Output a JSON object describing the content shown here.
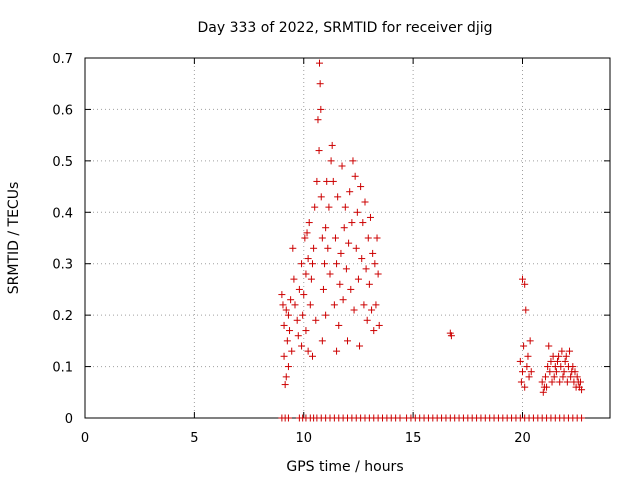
{
  "chart_data": {
    "type": "scatter",
    "title": "Day 333 of 2022, SRMTID for receiver djig",
    "xlabel": "GPS time / hours",
    "ylabel": "SRMTID / TECUs",
    "xlim": [
      0,
      24
    ],
    "ylim": [
      0,
      0.7
    ],
    "xticks": [
      0,
      5,
      10,
      15,
      20
    ],
    "yticks": [
      0,
      0.1,
      0.2,
      0.3,
      0.4,
      0.5,
      0.6,
      0.7
    ],
    "grid": true,
    "marker": "+",
    "marker_color": "#cc0000",
    "series": [
      {
        "name": "SRMTID",
        "points": [
          [
            9.0,
            0.24
          ],
          [
            9.05,
            0.22
          ],
          [
            9.1,
            0.18
          ],
          [
            9.1,
            0.12
          ],
          [
            9.15,
            0.065
          ],
          [
            9.2,
            0.08
          ],
          [
            9.2,
            0.21
          ],
          [
            9.25,
            0.15
          ],
          [
            9.3,
            0.2
          ],
          [
            9.3,
            0.1
          ],
          [
            9.35,
            0.17
          ],
          [
            9.4,
            0.23
          ],
          [
            9.45,
            0.13
          ],
          [
            9.5,
            0.33
          ],
          [
            9.55,
            0.27
          ],
          [
            9.6,
            0.22
          ],
          [
            9.7,
            0.19
          ],
          [
            9.75,
            0.16
          ],
          [
            9.8,
            0.25
          ],
          [
            9.9,
            0.3
          ],
          [
            9.9,
            0.14
          ],
          [
            9.95,
            0.2
          ],
          [
            10.0,
            0.24
          ],
          [
            10.05,
            0.35
          ],
          [
            10.1,
            0.28
          ],
          [
            10.1,
            0.17
          ],
          [
            10.15,
            0.36
          ],
          [
            10.2,
            0.31
          ],
          [
            10.2,
            0.13
          ],
          [
            10.25,
            0.38
          ],
          [
            10.3,
            0.22
          ],
          [
            10.35,
            0.27
          ],
          [
            10.4,
            0.3
          ],
          [
            10.4,
            0.12
          ],
          [
            10.45,
            0.33
          ],
          [
            10.5,
            0.41
          ],
          [
            10.55,
            0.19
          ],
          [
            10.6,
            0.46
          ],
          [
            10.65,
            0.58
          ],
          [
            10.7,
            0.52
          ],
          [
            10.72,
            0.69
          ],
          [
            10.75,
            0.65
          ],
          [
            10.78,
            0.6
          ],
          [
            10.8,
            0.43
          ],
          [
            10.85,
            0.35
          ],
          [
            10.85,
            0.15
          ],
          [
            10.9,
            0.25
          ],
          [
            10.95,
            0.3
          ],
          [
            11.0,
            0.37
          ],
          [
            11.0,
            0.2
          ],
          [
            11.05,
            0.46
          ],
          [
            11.1,
            0.33
          ],
          [
            11.15,
            0.41
          ],
          [
            11.2,
            0.28
          ],
          [
            11.25,
            0.5
          ],
          [
            11.3,
            0.53
          ],
          [
            11.35,
            0.46
          ],
          [
            11.4,
            0.22
          ],
          [
            11.45,
            0.35
          ],
          [
            11.5,
            0.3
          ],
          [
            11.5,
            0.13
          ],
          [
            11.55,
            0.43
          ],
          [
            11.6,
            0.18
          ],
          [
            11.65,
            0.26
          ],
          [
            11.7,
            0.32
          ],
          [
            11.75,
            0.49
          ],
          [
            11.8,
            0.23
          ],
          [
            11.85,
            0.37
          ],
          [
            11.9,
            0.41
          ],
          [
            11.95,
            0.29
          ],
          [
            12.0,
            0.15
          ],
          [
            12.05,
            0.34
          ],
          [
            12.1,
            0.44
          ],
          [
            12.15,
            0.25
          ],
          [
            12.2,
            0.38
          ],
          [
            12.25,
            0.5
          ],
          [
            12.3,
            0.21
          ],
          [
            12.35,
            0.47
          ],
          [
            12.4,
            0.33
          ],
          [
            12.45,
            0.4
          ],
          [
            12.5,
            0.27
          ],
          [
            12.55,
            0.14
          ],
          [
            12.6,
            0.45
          ],
          [
            12.65,
            0.31
          ],
          [
            12.7,
            0.38
          ],
          [
            12.75,
            0.22
          ],
          [
            12.8,
            0.42
          ],
          [
            12.85,
            0.29
          ],
          [
            12.9,
            0.19
          ],
          [
            12.95,
            0.35
          ],
          [
            13.0,
            0.26
          ],
          [
            13.05,
            0.39
          ],
          [
            13.1,
            0.21
          ],
          [
            13.15,
            0.32
          ],
          [
            13.2,
            0.17
          ],
          [
            13.25,
            0.3
          ],
          [
            13.3,
            0.22
          ],
          [
            13.35,
            0.35
          ],
          [
            13.4,
            0.28
          ],
          [
            13.45,
            0.18
          ],
          [
            16.7,
            0.165
          ],
          [
            16.75,
            0.16
          ],
          [
            19.9,
            0.11
          ],
          [
            19.95,
            0.07
          ],
          [
            20.0,
            0.09
          ],
          [
            20.0,
            0.27
          ],
          [
            20.05,
            0.14
          ],
          [
            20.1,
            0.26
          ],
          [
            20.1,
            0.06
          ],
          [
            20.15,
            0.21
          ],
          [
            20.2,
            0.1
          ],
          [
            20.25,
            0.12
          ],
          [
            20.3,
            0.08
          ],
          [
            20.35,
            0.15
          ],
          [
            20.4,
            0.09
          ],
          [
            20.9,
            0.07
          ],
          [
            20.95,
            0.05
          ],
          [
            21.0,
            0.06
          ],
          [
            21.05,
            0.08
          ],
          [
            21.1,
            0.06
          ],
          [
            21.15,
            0.1
          ],
          [
            21.2,
            0.14
          ],
          [
            21.25,
            0.09
          ],
          [
            21.3,
            0.11
          ],
          [
            21.35,
            0.07
          ],
          [
            21.4,
            0.12
          ],
          [
            21.45,
            0.08
          ],
          [
            21.5,
            0.1
          ],
          [
            21.55,
            0.09
          ],
          [
            21.6,
            0.11
          ],
          [
            21.65,
            0.12
          ],
          [
            21.7,
            0.07
          ],
          [
            21.75,
            0.1
          ],
          [
            21.8,
            0.13
          ],
          [
            21.85,
            0.08
          ],
          [
            21.9,
            0.09
          ],
          [
            21.95,
            0.11
          ],
          [
            22.0,
            0.12
          ],
          [
            22.05,
            0.07
          ],
          [
            22.1,
            0.1
          ],
          [
            22.15,
            0.13
          ],
          [
            22.2,
            0.08
          ],
          [
            22.25,
            0.09
          ],
          [
            22.3,
            0.1
          ],
          [
            22.35,
            0.07
          ],
          [
            22.4,
            0.09
          ],
          [
            22.45,
            0.06
          ],
          [
            22.5,
            0.08
          ],
          [
            22.55,
            0.07
          ],
          [
            22.6,
            0.06
          ],
          [
            22.65,
            0.07
          ],
          [
            22.7,
            0.055
          ],
          [
            9.0,
            0
          ],
          [
            9.15,
            0
          ],
          [
            9.3,
            0
          ],
          [
            9.8,
            0
          ],
          [
            9.95,
            0
          ],
          [
            10.1,
            0
          ],
          [
            10.3,
            0
          ],
          [
            10.45,
            0
          ],
          [
            10.6,
            0
          ],
          [
            10.8,
            0
          ],
          [
            11.0,
            0
          ],
          [
            11.2,
            0
          ],
          [
            11.4,
            0
          ],
          [
            11.6,
            0
          ],
          [
            11.8,
            0
          ],
          [
            12.0,
            0
          ],
          [
            12.2,
            0
          ],
          [
            12.4,
            0
          ],
          [
            12.6,
            0
          ],
          [
            12.8,
            0
          ],
          [
            13.0,
            0
          ],
          [
            13.2,
            0
          ],
          [
            13.4,
            0
          ],
          [
            13.6,
            0
          ],
          [
            13.8,
            0
          ],
          [
            14.0,
            0
          ],
          [
            14.2,
            0
          ],
          [
            14.4,
            0
          ],
          [
            14.7,
            0
          ],
          [
            14.9,
            0
          ],
          [
            15.1,
            0
          ],
          [
            15.3,
            0
          ],
          [
            15.5,
            0
          ],
          [
            15.7,
            0
          ],
          [
            15.9,
            0
          ],
          [
            16.1,
            0
          ],
          [
            16.3,
            0
          ],
          [
            16.5,
            0
          ],
          [
            16.7,
            0
          ],
          [
            16.9,
            0
          ],
          [
            17.1,
            0
          ],
          [
            17.3,
            0
          ],
          [
            17.5,
            0
          ],
          [
            17.7,
            0
          ],
          [
            17.9,
            0
          ],
          [
            18.1,
            0
          ],
          [
            18.3,
            0
          ],
          [
            18.5,
            0
          ],
          [
            18.7,
            0
          ],
          [
            18.9,
            0
          ],
          [
            19.1,
            0
          ],
          [
            19.3,
            0
          ],
          [
            19.5,
            0
          ],
          [
            19.7,
            0
          ],
          [
            19.9,
            0
          ],
          [
            20.1,
            0
          ],
          [
            20.3,
            0
          ],
          [
            20.5,
            0
          ],
          [
            20.7,
            0
          ],
          [
            20.9,
            0
          ],
          [
            21.1,
            0
          ],
          [
            21.3,
            0
          ],
          [
            21.5,
            0
          ],
          [
            21.7,
            0
          ],
          [
            21.9,
            0
          ],
          [
            22.1,
            0
          ],
          [
            22.3,
            0
          ],
          [
            22.5,
            0
          ],
          [
            22.7,
            0
          ]
        ]
      }
    ]
  }
}
